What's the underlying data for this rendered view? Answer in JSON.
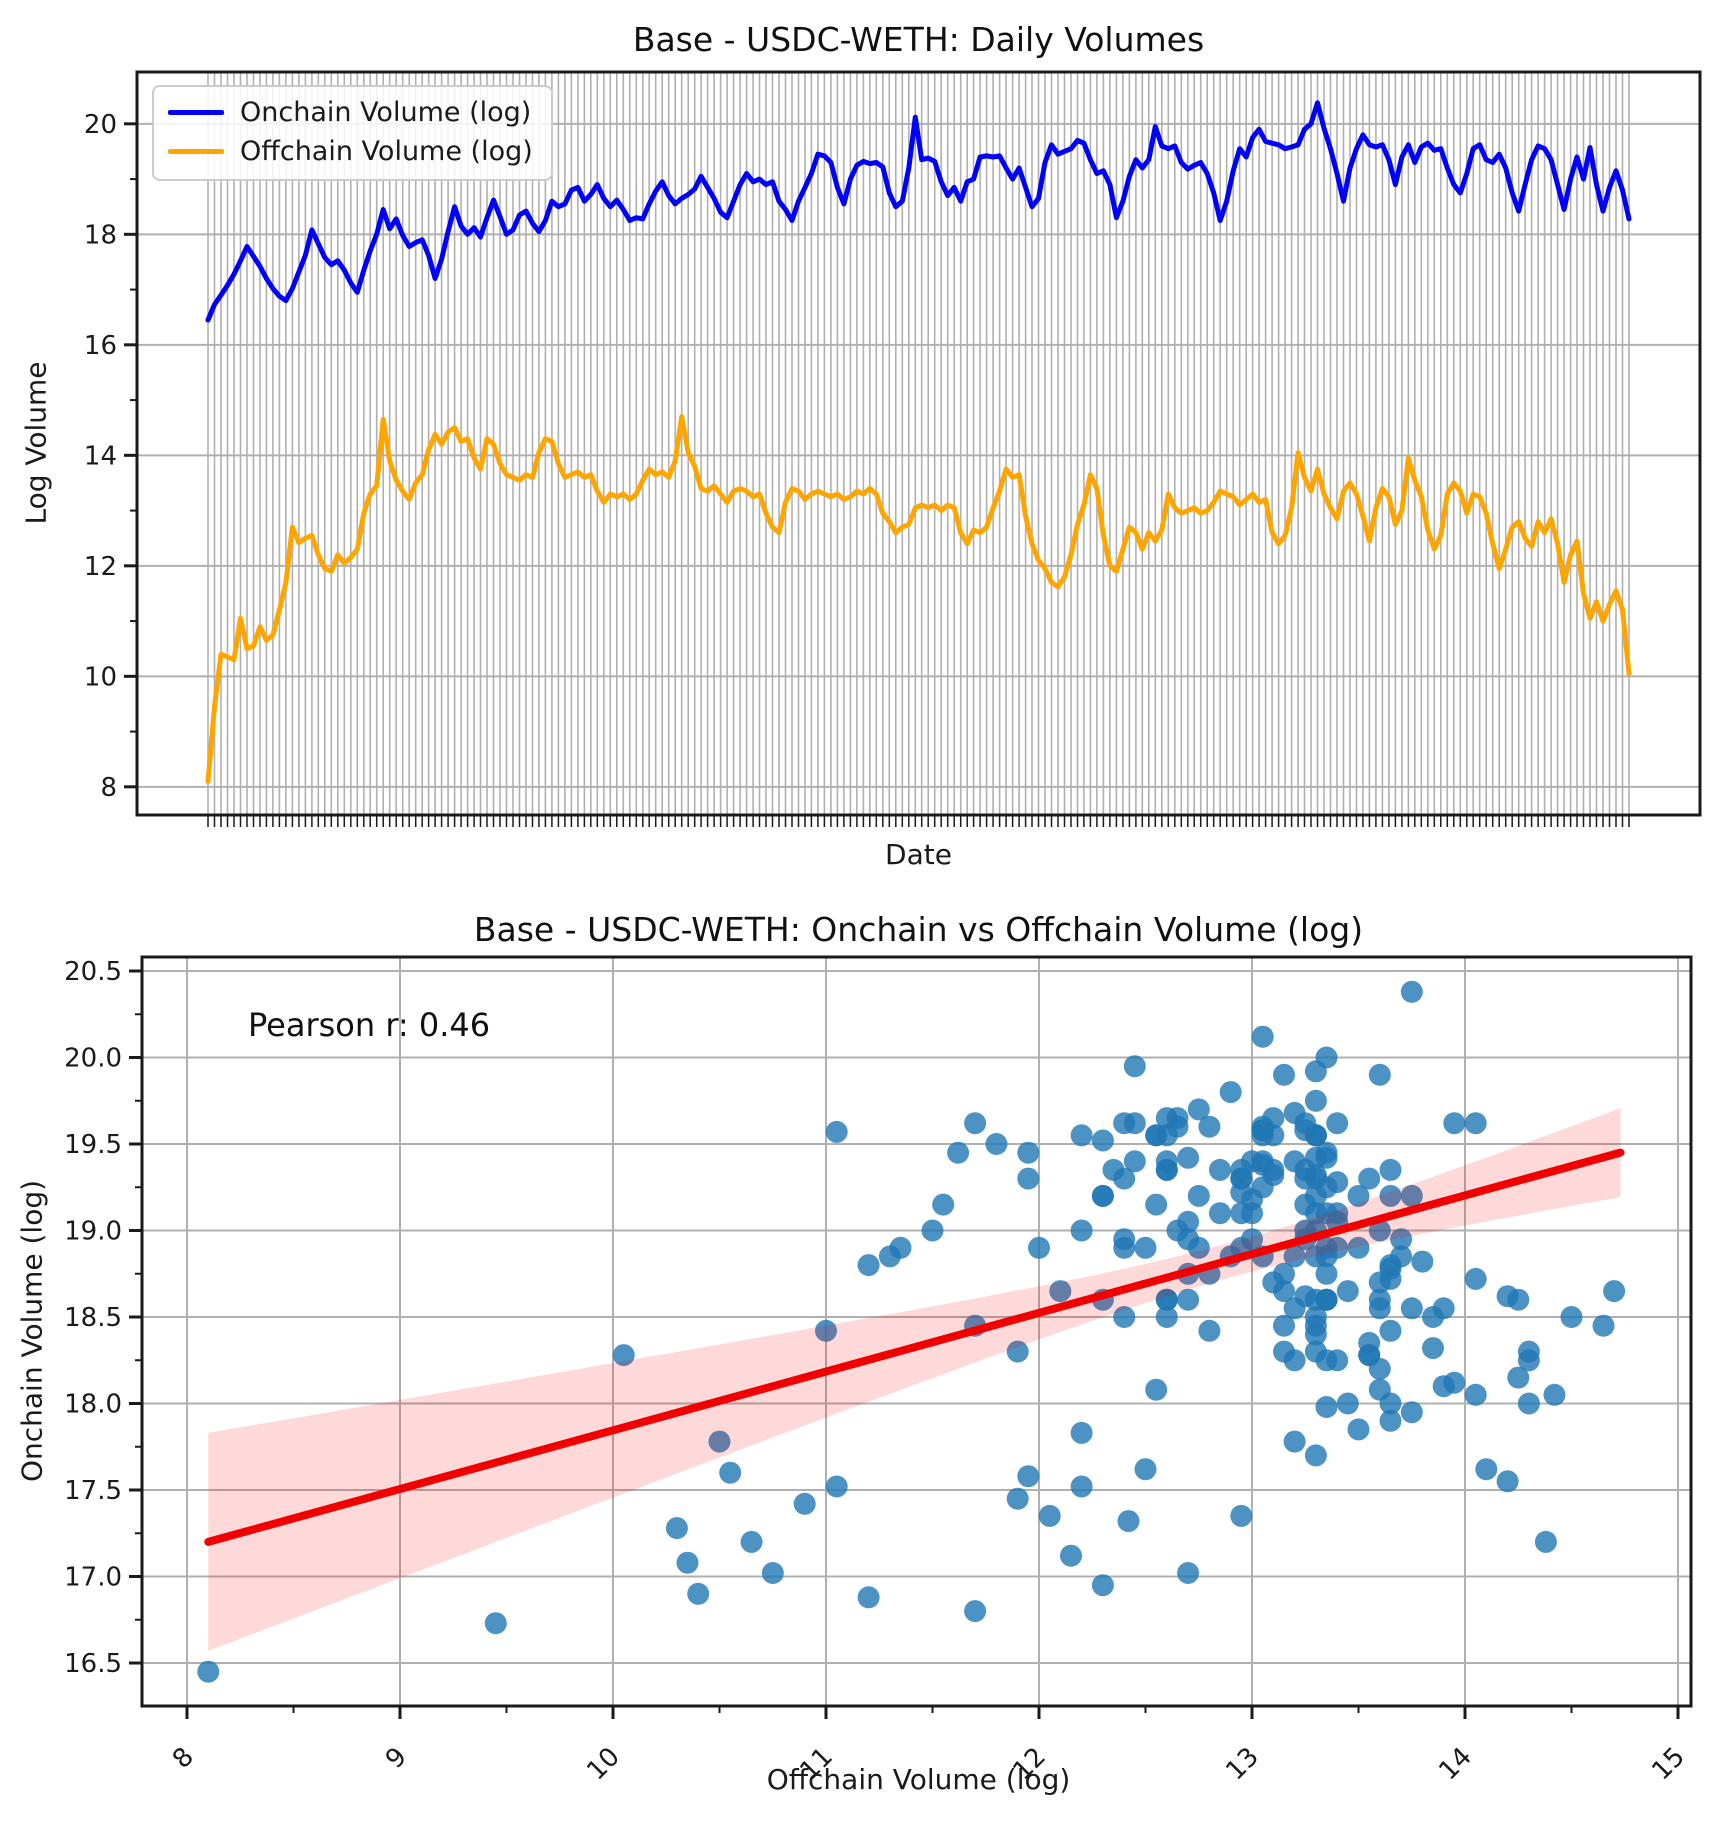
{
  "figure": {
    "background": "#ffffff",
    "text_color": "#1a1a1a",
    "grid_color": "#b0b0b0",
    "spine_color": "#1a1a1a"
  },
  "charts": {
    "daily": {
      "title": "Base - USDC-WETH: Daily Volumes",
      "xlabel": "Date",
      "ylabel": "Log Volume",
      "legend": [
        {
          "label": "Onchain Volume (log)",
          "color": "#0000ff"
        },
        {
          "label": "Offchain Volume (log)",
          "color": "#ffa500"
        }
      ]
    },
    "scatter": {
      "title": "Base - USDC-WETH: Onchain vs Offchain Volume (log)",
      "xlabel": "Offchain Volume (log)",
      "ylabel": "Onchain Volume (log)",
      "annotation": "Pearson r: 0.46"
    }
  },
  "chart_data": [
    {
      "type": "line",
      "title": "Base - USDC-WETH: Daily Volumes",
      "xlabel": "Date",
      "ylabel": "Log Volume",
      "ylim": [
        7.49,
        20.94
      ],
      "yticks": [
        8,
        10,
        12,
        14,
        16,
        18,
        20
      ],
      "y_minor_ticks": [
        9,
        11,
        13,
        15,
        17,
        19
      ],
      "x_gridlines": "one per day (no date tick labels shown)",
      "n_points": 220,
      "legend_position": "upper left",
      "grid": true,
      "series": [
        {
          "name": "Onchain Volume (log)",
          "color": "#0000ff",
          "values": [
            16.45,
            16.73,
            16.9,
            17.08,
            17.28,
            17.52,
            17.78,
            17.6,
            17.42,
            17.2,
            17.02,
            16.88,
            16.8,
            17.02,
            17.32,
            17.62,
            18.08,
            17.83,
            17.58,
            17.45,
            17.52,
            17.35,
            17.12,
            16.95,
            17.35,
            17.7,
            18.0,
            18.45,
            18.1,
            18.28,
            17.98,
            17.78,
            17.85,
            17.9,
            17.62,
            17.2,
            17.55,
            18.05,
            18.5,
            18.15,
            18.0,
            18.12,
            17.95,
            18.3,
            18.62,
            18.32,
            18.0,
            18.08,
            18.35,
            18.42,
            18.2,
            18.05,
            18.25,
            18.6,
            18.5,
            18.55,
            18.8,
            18.85,
            18.6,
            18.72,
            18.9,
            18.65,
            18.5,
            18.62,
            18.45,
            18.25,
            18.3,
            18.28,
            18.55,
            18.78,
            18.95,
            18.7,
            18.55,
            18.65,
            18.72,
            18.82,
            19.05,
            18.85,
            18.65,
            18.4,
            18.3,
            18.6,
            18.9,
            19.1,
            18.95,
            19.0,
            18.9,
            18.95,
            18.6,
            18.45,
            18.25,
            18.6,
            18.85,
            19.1,
            19.45,
            19.42,
            19.3,
            18.85,
            18.55,
            19.0,
            19.25,
            19.32,
            19.28,
            19.3,
            19.22,
            18.75,
            18.5,
            18.6,
            19.2,
            20.12,
            19.35,
            19.38,
            19.32,
            18.95,
            18.7,
            18.85,
            18.6,
            18.95,
            19.0,
            19.4,
            19.42,
            19.4,
            19.42,
            19.2,
            19.0,
            19.2,
            18.85,
            18.5,
            18.65,
            19.3,
            19.62,
            19.45,
            19.5,
            19.55,
            19.7,
            19.65,
            19.35,
            19.1,
            19.15,
            18.9,
            18.3,
            18.6,
            19.05,
            19.35,
            19.2,
            19.35,
            19.95,
            19.6,
            19.55,
            19.6,
            19.3,
            19.18,
            19.25,
            19.3,
            19.1,
            18.75,
            18.25,
            18.6,
            19.15,
            19.55,
            19.4,
            19.75,
            19.9,
            19.68,
            19.65,
            19.62,
            19.55,
            19.58,
            19.62,
            19.9,
            20.0,
            20.38,
            19.92,
            19.55,
            19.1,
            18.6,
            19.2,
            19.55,
            19.8,
            19.62,
            19.58,
            19.62,
            19.35,
            18.9,
            19.4,
            19.62,
            19.3,
            19.58,
            19.65,
            19.52,
            19.55,
            19.2,
            18.9,
            18.75,
            19.1,
            19.55,
            19.62,
            19.35,
            19.3,
            19.45,
            19.2,
            18.75,
            18.42,
            18.9,
            19.35,
            19.6,
            19.55,
            19.35,
            18.9,
            18.45,
            19.0,
            19.4,
            19.0,
            19.57,
            18.9,
            18.42,
            18.85,
            19.15,
            18.8,
            18.28
          ]
        },
        {
          "name": "Offchain Volume (log)",
          "color": "#ffa500",
          "values": [
            8.1,
            9.45,
            10.4,
            10.35,
            10.3,
            11.05,
            10.5,
            10.55,
            10.9,
            10.65,
            10.75,
            11.2,
            11.7,
            12.7,
            12.42,
            12.5,
            12.55,
            12.2,
            11.95,
            11.9,
            12.2,
            12.05,
            12.15,
            12.3,
            12.95,
            13.3,
            13.45,
            14.65,
            13.9,
            13.55,
            13.35,
            13.2,
            13.5,
            13.65,
            14.1,
            14.38,
            14.2,
            14.42,
            14.5,
            14.25,
            14.3,
            13.95,
            13.75,
            14.3,
            14.2,
            13.85,
            13.65,
            13.6,
            13.55,
            13.65,
            13.6,
            14.05,
            14.3,
            14.25,
            13.85,
            13.6,
            13.65,
            13.7,
            13.6,
            13.65,
            13.35,
            13.15,
            13.3,
            13.25,
            13.3,
            13.2,
            13.3,
            13.55,
            13.75,
            13.65,
            13.7,
            13.6,
            13.9,
            14.7,
            14.05,
            13.8,
            13.4,
            13.35,
            13.45,
            13.3,
            13.15,
            13.35,
            13.4,
            13.35,
            13.25,
            13.3,
            12.95,
            12.7,
            12.6,
            13.15,
            13.4,
            13.35,
            13.2,
            13.3,
            13.35,
            13.3,
            13.25,
            13.3,
            13.2,
            13.25,
            13.35,
            13.3,
            13.4,
            13.3,
            12.95,
            12.8,
            12.6,
            12.7,
            12.75,
            13.05,
            13.1,
            13.05,
            13.1,
            13.0,
            13.1,
            13.05,
            12.6,
            12.4,
            12.65,
            12.6,
            12.7,
            13.05,
            13.35,
            13.75,
            13.6,
            13.65,
            12.9,
            12.4,
            12.1,
            11.95,
            11.7,
            11.62,
            11.8,
            12.2,
            12.75,
            13.1,
            13.65,
            13.4,
            12.55,
            12.0,
            11.9,
            12.3,
            12.7,
            12.6,
            12.3,
            12.6,
            12.45,
            12.65,
            13.3,
            13.05,
            12.95,
            13.0,
            13.05,
            12.95,
            13.0,
            13.15,
            13.35,
            13.3,
            13.25,
            13.1,
            13.2,
            13.3,
            13.15,
            13.2,
            12.6,
            12.4,
            12.55,
            13.05,
            14.05,
            13.6,
            13.35,
            13.75,
            13.3,
            13.05,
            12.85,
            13.35,
            13.5,
            13.3,
            12.9,
            12.45,
            13.05,
            13.4,
            13.25,
            12.75,
            13.0,
            13.95,
            13.55,
            13.25,
            12.65,
            12.3,
            12.55,
            13.3,
            13.5,
            13.35,
            12.95,
            13.3,
            13.25,
            12.95,
            12.4,
            11.95,
            12.3,
            12.7,
            12.8,
            12.5,
            12.35,
            12.8,
            12.6,
            12.85,
            12.4,
            11.7,
            12.2,
            12.45,
            11.5,
            11.05,
            11.35,
            11.0,
            11.3,
            11.55,
            11.2,
            10.05
          ]
        }
      ]
    },
    {
      "type": "scatter",
      "title": "Base - USDC-WETH: Onchain vs Offchain Volume (log)",
      "xlabel": "Offchain Volume (log)",
      "ylabel": "Onchain Volume (log)",
      "annotation": "Pearson r: 0.46",
      "pearson_r": 0.46,
      "xlim": [
        7.77,
        15.06
      ],
      "ylim": [
        16.25,
        20.58
      ],
      "xticks": [
        8,
        9,
        10,
        11,
        12,
        13,
        14,
        15
      ],
      "yticks": [
        16.5,
        17.0,
        17.5,
        18.0,
        18.5,
        19.0,
        19.5,
        20.0,
        20.5
      ],
      "xtick_rotation": 45,
      "grid": true,
      "points_note": "each point i is (offchain[i], onchain[i]) from the daily series in chart_data[0]",
      "point_style": {
        "color": "#1f77b4",
        "alpha": 0.8,
        "radius": 11
      },
      "trendline": {
        "x_start": 8.1,
        "x_end": 14.73,
        "slope": 0.3394,
        "intercept": 14.451,
        "color": "#f10000"
      },
      "confidence_band": {
        "center_x": 12.9,
        "half_width_at_center": 0.1,
        "spread_k": 0.0168,
        "color": "#f10000",
        "opacity": 0.15
      }
    }
  ]
}
